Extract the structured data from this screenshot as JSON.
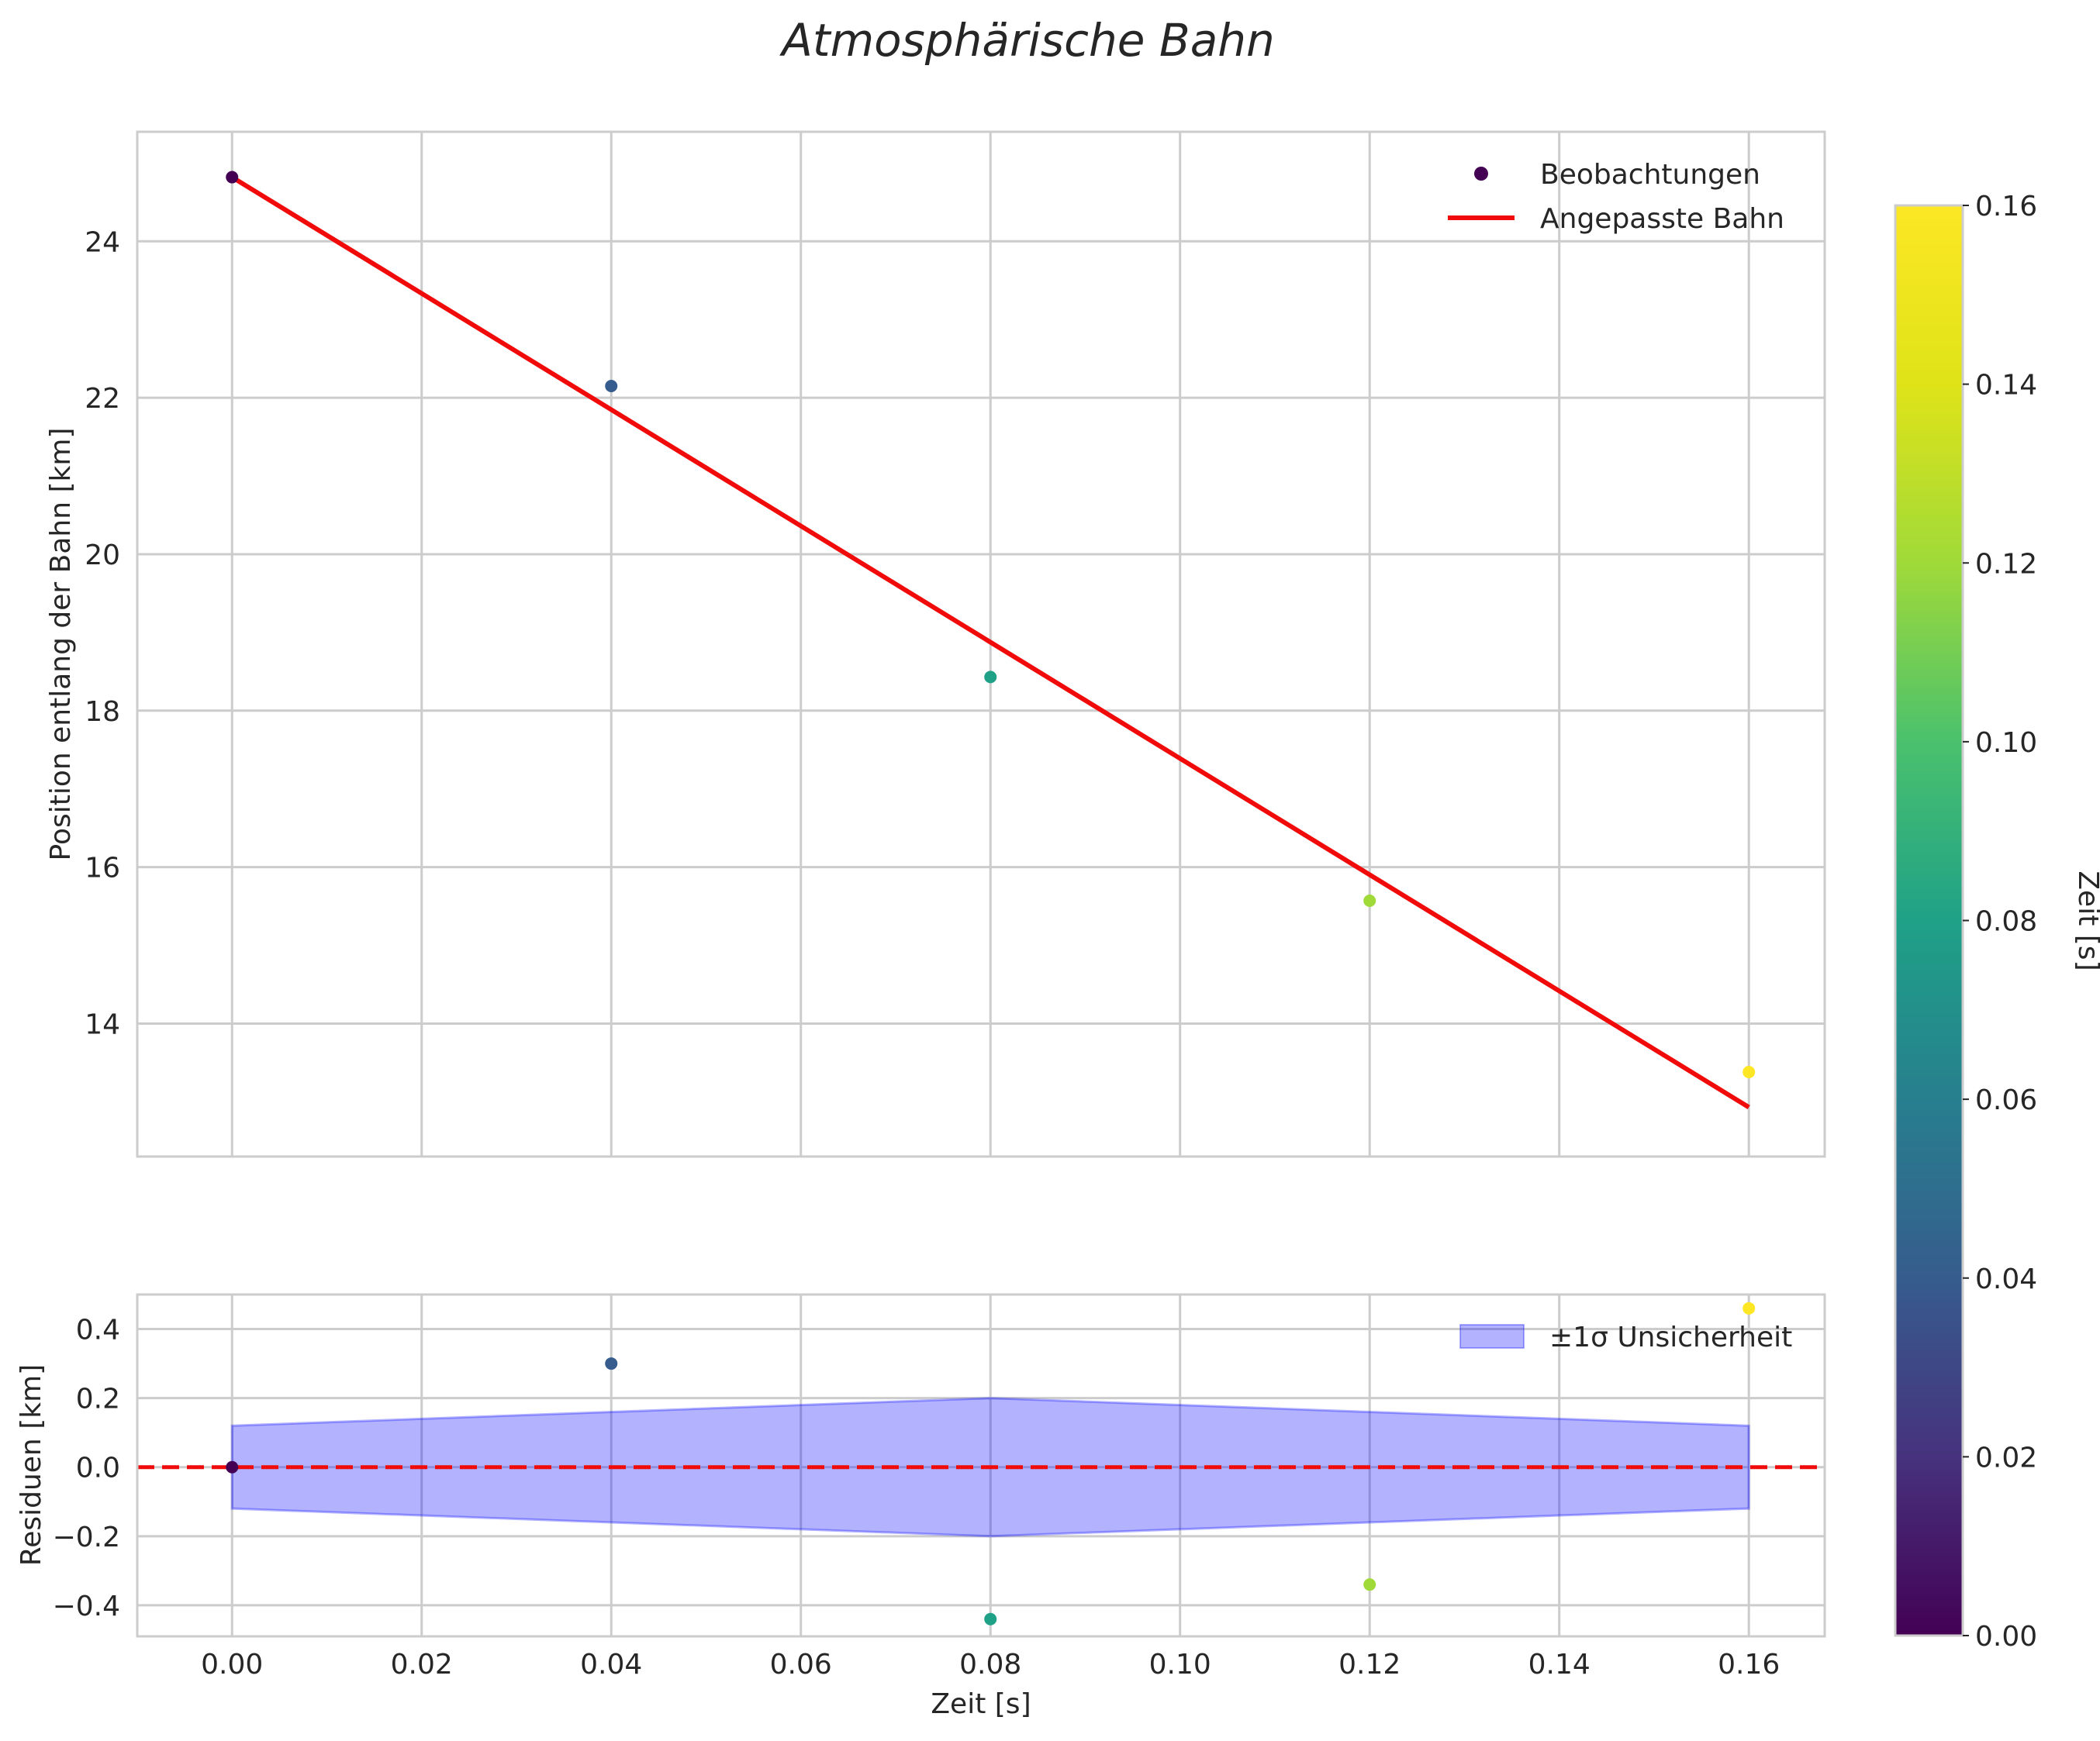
{
  "chart_data": {
    "type": "scatter",
    "title": "Atmosphärische Bahn",
    "main_plot": {
      "ylabel": "Position entlang der Bahn [km]",
      "xlim": [
        -0.01,
        0.168
      ],
      "ylim": [
        12.3,
        25.4
      ],
      "x_ticks": [
        0.0,
        0.02,
        0.04,
        0.06,
        0.08,
        0.1,
        0.12,
        0.14,
        0.16
      ],
      "y_ticks": [
        14,
        16,
        18,
        20,
        22,
        24
      ],
      "y_tick_labels": [
        "14",
        "16",
        "18",
        "20",
        "22",
        "24"
      ],
      "grid": true,
      "legend_position": "top-right",
      "series": [
        {
          "name": "Beobachtungen",
          "kind": "scatter",
          "x": [
            0.0,
            0.04,
            0.08,
            0.12,
            0.16
          ],
          "y": [
            24.82,
            22.15,
            18.43,
            15.57,
            13.38
          ],
          "color_by": "x"
        },
        {
          "name": "Angepasste Bahn",
          "kind": "line",
          "x": [
            0.0,
            0.16
          ],
          "y": [
            24.82,
            12.93
          ],
          "color": "#f00a0a"
        }
      ]
    },
    "residual_plot": {
      "ylabel": "Residuen [km]",
      "xlabel": "Zeit [s]",
      "xlim": [
        -0.01,
        0.168
      ],
      "ylim": [
        -0.49,
        0.5
      ],
      "x_ticks": [
        0.0,
        0.02,
        0.04,
        0.06,
        0.08,
        0.1,
        0.12,
        0.14,
        0.16
      ],
      "x_tick_labels": [
        "0.00",
        "0.02",
        "0.04",
        "0.06",
        "0.08",
        "0.10",
        "0.12",
        "0.14",
        "0.16"
      ],
      "y_ticks": [
        -0.4,
        -0.2,
        0.0,
        0.2,
        0.4
      ],
      "y_tick_labels": [
        "−0.4",
        "−0.2",
        "0.0",
        "0.2",
        "0.4"
      ],
      "grid": true,
      "legend_position": "top-right",
      "residuals": {
        "x": [
          0.0,
          0.04,
          0.08,
          0.12,
          0.16
        ],
        "y": [
          0.0,
          0.3,
          -0.44,
          -0.34,
          0.46
        ]
      },
      "band": {
        "name": "±1σ Unsicherheit",
        "x": [
          0.0,
          0.04,
          0.08,
          0.12,
          0.16
        ],
        "upper": [
          0.12,
          0.16,
          0.2,
          0.16,
          0.12
        ],
        "lower": [
          -0.12,
          -0.16,
          -0.2,
          -0.16,
          -0.12
        ],
        "color": "#0000ff"
      },
      "zero_line": {
        "y": 0.0,
        "style": "dashed",
        "color": "#f00a0a"
      }
    },
    "colorbar": {
      "label": "Zeit [s]",
      "range": [
        0.0,
        0.16
      ],
      "ticks": [
        0.0,
        0.02,
        0.04,
        0.06,
        0.08,
        0.1,
        0.12,
        0.14,
        0.16
      ],
      "tick_labels": [
        "0.00",
        "0.02",
        "0.04",
        "0.06",
        "0.08",
        "0.10",
        "0.12",
        "0.14",
        "0.16"
      ],
      "colormap": "viridis"
    }
  }
}
